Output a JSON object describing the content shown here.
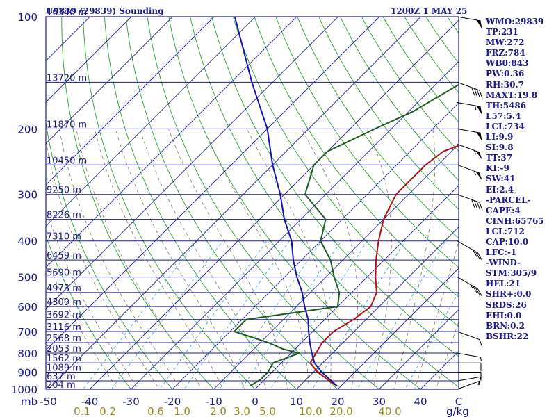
{
  "header": {
    "station": "U9839 (29839) Sounding",
    "time": "1200Z  1 MAY 25"
  },
  "indices": [
    "WMO:29839",
    "TP:231",
    "MW:272",
    "FRZ:784",
    "WB0:843",
    "PW:0.36",
    "RH:30.7",
    "MAXT:19.8",
    "TH:5486",
    "L57:5.4",
    "LCL:734",
    "LI:9.9",
    "SI:9.8",
    "TT:37",
    "KI:-9",
    "SW:41",
    "EI:2.4",
    "-PARCEL-",
    "CAPE:4",
    "CINH:65765",
    "LCL:712",
    "CAP:10.0",
    "LFC:-1",
    "-WIND-",
    "STM:305/9",
    "HEL:21",
    "SHR+:0.0",
    "SRDS:26",
    "EHI:0.0",
    "BRN:0.2",
    "BSHR:22"
  ],
  "colors": {
    "isobar": "#1a1a9e",
    "isotherm": "#1a1a9e",
    "dry_adiabat": "#2ca02c",
    "mixing_ratio": "#3fa9d6",
    "moist_adiabat": "#8a7a5a",
    "temperature": "#b31212",
    "dewpoint": "#1e5c1e",
    "parcel": "#1414a8",
    "label": "#1a1a8a",
    "mixing_label": "#9c8a18"
  },
  "chart_data": {
    "type": "line",
    "title": "U9839 (29839) Sounding",
    "ylabel": "mb",
    "xlabel": "C",
    "mixing_ratio_unit": "g/kg",
    "y_scale": "log",
    "ylim": [
      1000,
      100
    ],
    "xlim": [
      -50,
      50
    ],
    "pressure_ticks": [
      "100",
      "200",
      "300",
      "400",
      "500",
      "600",
      "700",
      "800",
      "900",
      "1000"
    ],
    "temperature_ticks": [
      "-50",
      "-40",
      "-30",
      "-20",
      "-10",
      "0",
      "10",
      "20",
      "30",
      "40"
    ],
    "mixing_ratio_ticks": [
      "0.1",
      "0.2",
      "0.6",
      "1.0",
      "2.0",
      "3.0",
      "5.0",
      "10.0",
      "20.0",
      "40.0"
    ],
    "height_labels": [
      {
        "p": 100,
        "label": "16340 m"
      },
      {
        "p": 150,
        "label": "13720 m"
      },
      {
        "p": 200,
        "label": "11870 m"
      },
      {
        "p": 250,
        "label": "10450 m"
      },
      {
        "p": 300,
        "label": "9250 m"
      },
      {
        "p": 350,
        "label": "8226 m"
      },
      {
        "p": 400,
        "label": "7310 m"
      },
      {
        "p": 450,
        "label": "6459 m"
      },
      {
        "p": 500,
        "label": "5690 m"
      },
      {
        "p": 550,
        "label": "4973 m"
      },
      {
        "p": 600,
        "label": "4309 m"
      },
      {
        "p": 650,
        "label": "3692 m"
      },
      {
        "p": 700,
        "label": "3116 m"
      },
      {
        "p": 750,
        "label": "2568 m"
      },
      {
        "p": 800,
        "label": "2053 m"
      },
      {
        "p": 850,
        "label": "1562 m"
      },
      {
        "p": 900,
        "label": "1089 m"
      },
      {
        "p": 950,
        "label": "637 m"
      },
      {
        "p": 1000,
        "label": "204 m"
      }
    ],
    "series": [
      {
        "id": "temperature",
        "values": [
          [
            980,
            19
          ],
          [
            950,
            16
          ],
          [
            900,
            11
          ],
          [
            850,
            7
          ],
          [
            800,
            6
          ],
          [
            750,
            5
          ],
          [
            700,
            5
          ],
          [
            650,
            7
          ],
          [
            600,
            8
          ],
          [
            550,
            6
          ],
          [
            500,
            2
          ],
          [
            450,
            -2
          ],
          [
            400,
            -6
          ],
          [
            350,
            -10
          ],
          [
            300,
            -13
          ],
          [
            270,
            -13
          ],
          [
            250,
            -13
          ],
          [
            230,
            -12
          ],
          [
            200,
            -3
          ],
          [
            180,
            3
          ],
          [
            150,
            9
          ],
          [
            100,
            22
          ]
        ]
      },
      {
        "id": "dewpoint",
        "values": [
          [
            980,
            -2
          ],
          [
            940,
            -1
          ],
          [
            900,
            -1
          ],
          [
            850,
            -2
          ],
          [
            800,
            2
          ],
          [
            780,
            -3
          ],
          [
            750,
            -8
          ],
          [
            700,
            -19
          ],
          [
            650,
            -19
          ],
          [
            600,
            0
          ],
          [
            550,
            -3
          ],
          [
            500,
            -8
          ],
          [
            450,
            -13
          ],
          [
            400,
            -20
          ],
          [
            350,
            -24
          ],
          [
            300,
            -35
          ],
          [
            250,
            -40
          ],
          [
            230,
            -40
          ],
          [
            200,
            -34
          ],
          [
            180,
            -29
          ],
          [
            150,
            -24
          ],
          [
            100,
            -30
          ]
        ]
      },
      {
        "id": "parcel",
        "values": [
          [
            980,
            19
          ],
          [
            900,
            12
          ],
          [
            850,
            8
          ],
          [
            800,
            5
          ],
          [
            750,
            2
          ],
          [
            700,
            -1
          ],
          [
            650,
            -4
          ],
          [
            600,
            -8
          ],
          [
            550,
            -12
          ],
          [
            500,
            -17
          ],
          [
            450,
            -22
          ],
          [
            400,
            -27
          ],
          [
            350,
            -34
          ],
          [
            300,
            -41
          ],
          [
            250,
            -50
          ],
          [
            200,
            -60
          ],
          [
            150,
            -75
          ],
          [
            100,
            -95
          ]
        ]
      }
    ],
    "wind_barbs": [
      {
        "p": 1000,
        "dir": 250,
        "spd": 5
      },
      {
        "p": 950,
        "dir": 260,
        "spd": 10
      },
      {
        "p": 900,
        "dir": 270,
        "spd": 10
      },
      {
        "p": 850,
        "dir": 270,
        "spd": 10
      },
      {
        "p": 800,
        "dir": 280,
        "spd": 5
      },
      {
        "p": 700,
        "dir": 290,
        "spd": 10
      },
      {
        "p": 500,
        "dir": 300,
        "spd": 35
      },
      {
        "p": 400,
        "dir": 300,
        "spd": 30
      },
      {
        "p": 300,
        "dir": 290,
        "spd": 40
      },
      {
        "p": 250,
        "dir": 290,
        "spd": 55
      },
      {
        "p": 220,
        "dir": 290,
        "spd": 55
      },
      {
        "p": 200,
        "dir": 280,
        "spd": 50
      },
      {
        "p": 170,
        "dir": 280,
        "spd": 55
      },
      {
        "p": 150,
        "dir": 290,
        "spd": 40
      },
      {
        "p": 100,
        "dir": 280,
        "spd": 50
      }
    ]
  }
}
